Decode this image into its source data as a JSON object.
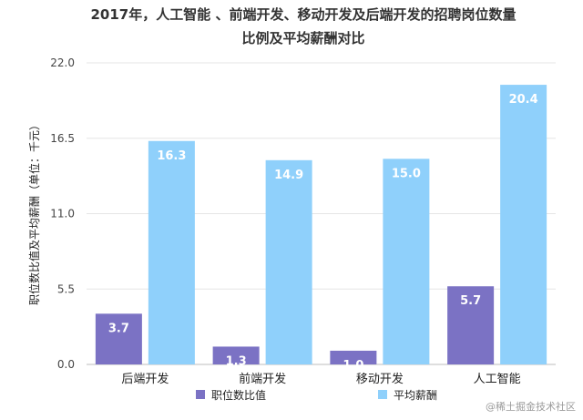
{
  "chart_data": {
    "type": "bar",
    "title": [
      "2017年，人工智能 、前端开发、移动开发及后端开发的招聘岗位数量",
      "比例及平均薪酬对比"
    ],
    "xlabel": "",
    "ylabel": "职位数比值及平均薪酬（单位：千元）",
    "categories": [
      "后端开发",
      "前端开发",
      "移动开发",
      "人工智能"
    ],
    "series": [
      {
        "name": "职位数比值",
        "values": [
          3.7,
          1.3,
          1.0,
          5.7
        ],
        "color": "#7b72c4"
      },
      {
        "name": "平均薪酬",
        "values": [
          16.3,
          14.9,
          15.0,
          20.4
        ],
        "color": "#8fd0fb"
      }
    ],
    "data_labels": [
      [
        "3.7",
        "1.3",
        "1.0",
        "5.7"
      ],
      [
        "16.3",
        "14.9",
        "15.0",
        "20.4"
      ]
    ],
    "yticks": [
      "0.0",
      "5.5",
      "11.0",
      "16.5",
      "22.0"
    ],
    "ylim": [
      0,
      22
    ],
    "grid": true,
    "legend_position": "bottom"
  },
  "watermark": "@稀土掘金技术社区"
}
